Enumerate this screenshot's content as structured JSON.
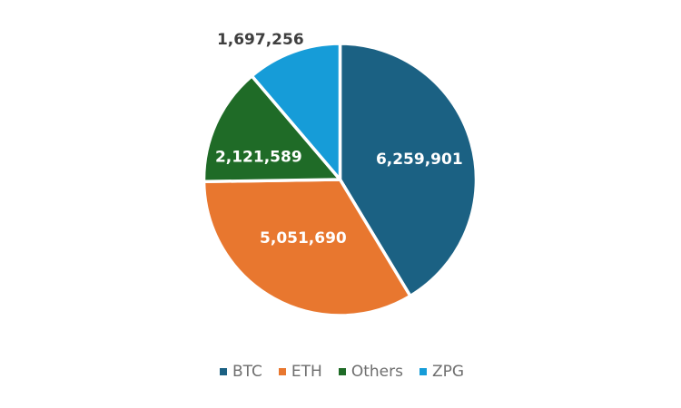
{
  "chart_data": {
    "type": "pie",
    "title": "",
    "slices": [
      {
        "label": "BTC",
        "value": 6259901,
        "display_value": "6,259,901",
        "color": "#1B6183",
        "label_position": "inside"
      },
      {
        "label": "ETH",
        "value": 5051690,
        "display_value": "5,051,690",
        "color": "#E8772F",
        "label_position": "inside"
      },
      {
        "label": "Others",
        "value": 2121589,
        "display_value": "2,121,589",
        "color": "#1F6B27",
        "label_position": "inside"
      },
      {
        "label": "ZPG",
        "value": 1697256,
        "display_value": "1,697,256",
        "color": "#169CD8",
        "label_position": "outside"
      }
    ],
    "start_angle_deg": 0,
    "direction": "clockwise",
    "legend_position": "bottom",
    "slice_border_color": "#FFFFFF",
    "inside_label_color": "#FFFFFF",
    "outside_label_color": "#3F3F3F",
    "legend_text_color": "#6E6E6E"
  }
}
